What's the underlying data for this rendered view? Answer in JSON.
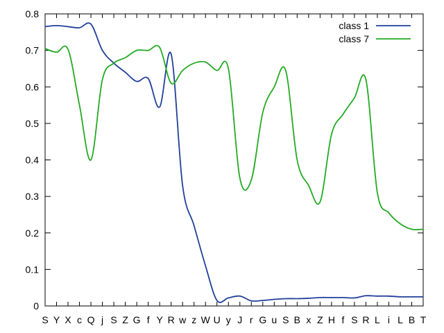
{
  "chart_data": {
    "type": "line",
    "categories": [
      "S",
      "Y",
      "X",
      "c",
      "Q",
      "j",
      "S",
      "Z",
      "G",
      "f",
      "Y",
      "R",
      "w",
      "z",
      "W",
      "U",
      "y",
      "J",
      "r",
      "G",
      "u",
      "S",
      "B",
      "x",
      "Z",
      "H",
      "f",
      "S",
      "R",
      "L",
      "i",
      "L",
      "B",
      "T"
    ],
    "ylim": [
      0,
      0.8
    ],
    "yticks": [
      "0",
      "0.1",
      "0.2",
      "0.3",
      "0.4",
      "0.5",
      "0.6",
      "0.7",
      "0.8"
    ],
    "legend_position": "top-right",
    "grid": false,
    "series": [
      {
        "name": "class 1",
        "color": "#1f3f99",
        "values": [
          0.765,
          0.768,
          0.765,
          0.762,
          0.772,
          0.7,
          0.665,
          0.64,
          0.615,
          0.623,
          0.545,
          0.69,
          0.33,
          0.22,
          0.11,
          0.015,
          0.022,
          0.027,
          0.014,
          0.015,
          0.018,
          0.02,
          0.02,
          0.021,
          0.023,
          0.023,
          0.023,
          0.022,
          0.028,
          0.027,
          0.027,
          0.025,
          0.025,
          0.025
        ]
      },
      {
        "name": "class 7",
        "color": "#22aa22",
        "values": [
          0.705,
          0.695,
          0.703,
          0.55,
          0.4,
          0.62,
          0.665,
          0.68,
          0.7,
          0.7,
          0.708,
          0.61,
          0.645,
          0.665,
          0.668,
          0.645,
          0.65,
          0.35,
          0.345,
          0.53,
          0.6,
          0.645,
          0.4,
          0.33,
          0.285,
          0.47,
          0.525,
          0.57,
          0.62,
          0.31,
          0.255,
          0.225,
          0.21,
          0.21
        ]
      }
    ]
  }
}
